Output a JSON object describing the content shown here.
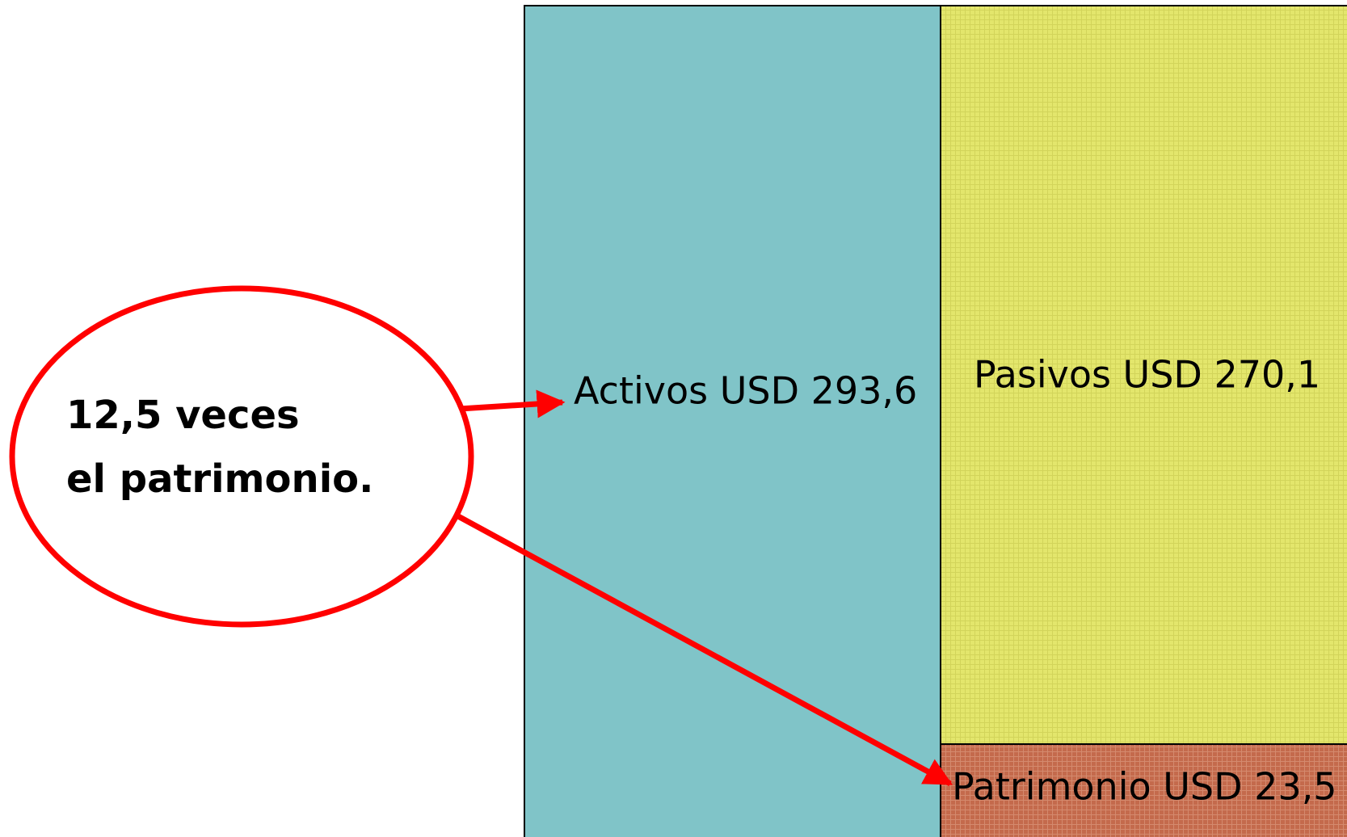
{
  "blocks": [
    {
      "label": "Activos USD 293,6"
    },
    {
      "label": "Pasivos USD 270,1"
    },
    {
      "label": "Patrimonio USD 23,5"
    }
  ],
  "callout": {
    "lines": [
      "12,5 veces",
      "el patrimonio."
    ]
  }
}
